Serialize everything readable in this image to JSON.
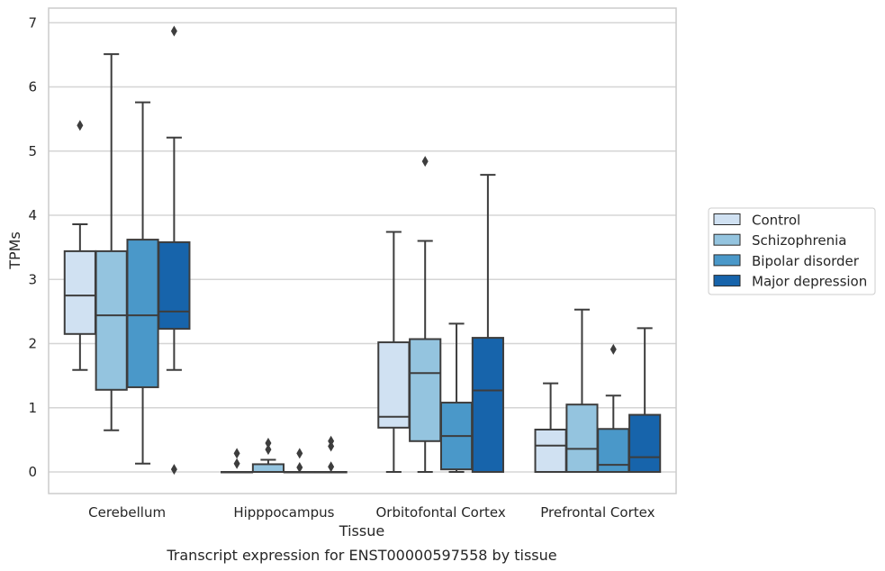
{
  "chart_data": {
    "type": "box",
    "title": "",
    "caption": "Transcript expression for ENST00000597558 by tissue",
    "xlabel": "Tissue",
    "ylabel": "TPMs",
    "ylim": [
      -0.33,
      7.2
    ],
    "yticks": [
      0,
      1,
      2,
      3,
      4,
      5,
      6,
      7
    ],
    "grid": "horizontal",
    "legend_position": "right",
    "categories": [
      "Cerebellum",
      "Hipppocampus",
      "Orbitofontal Cortex",
      "Prefrontal Cortex"
    ],
    "series": [
      {
        "name": "Control",
        "color": "#d0e1f2",
        "boxes": [
          {
            "whislo": 1.59,
            "q1": 2.15,
            "med": 2.75,
            "q3": 3.44,
            "whishi": 3.86,
            "fliers": [
              5.4
            ]
          },
          {
            "whislo": 0,
            "q1": 0,
            "med": 0,
            "q3": 0,
            "whishi": 0,
            "fliers": [
              0.13,
              0.29
            ]
          },
          {
            "whislo": 0,
            "q1": 0.69,
            "med": 0.86,
            "q3": 2.02,
            "whishi": 3.74,
            "fliers": []
          },
          {
            "whislo": 0,
            "q1": 0,
            "med": 0.41,
            "q3": 0.66,
            "whishi": 1.38,
            "fliers": []
          }
        ]
      },
      {
        "name": "Schizophrenia",
        "color": "#94c4df",
        "boxes": [
          {
            "whislo": 0.65,
            "q1": 1.28,
            "med": 2.44,
            "q3": 3.44,
            "whishi": 6.51,
            "fliers": []
          },
          {
            "whislo": 0,
            "q1": 0,
            "med": 0,
            "q3": 0.12,
            "whishi": 0.19,
            "fliers": [
              0.35,
              0.45
            ]
          },
          {
            "whislo": 0,
            "q1": 0.48,
            "med": 1.54,
            "q3": 2.07,
            "whishi": 3.6,
            "fliers": [
              4.84
            ]
          },
          {
            "whislo": 0,
            "q1": 0,
            "med": 0.36,
            "q3": 1.05,
            "whishi": 2.53,
            "fliers": []
          }
        ]
      },
      {
        "name": "Bipolar disorder",
        "color": "#4a98c9",
        "boxes": [
          {
            "whislo": 0.13,
            "q1": 1.32,
            "med": 2.44,
            "q3": 3.62,
            "whishi": 5.76,
            "fliers": []
          },
          {
            "whislo": 0,
            "q1": 0,
            "med": 0,
            "q3": 0,
            "whishi": 0,
            "fliers": [
              0.07,
              0.29
            ]
          },
          {
            "whislo": 0,
            "q1": 0.04,
            "med": 0.56,
            "q3": 1.08,
            "whishi": 2.31,
            "fliers": []
          },
          {
            "whislo": 0,
            "q1": 0,
            "med": 0.11,
            "q3": 0.67,
            "whishi": 1.19,
            "fliers": [
              1.91
            ]
          }
        ]
      },
      {
        "name": "Major depression",
        "color": "#1764ab",
        "boxes": [
          {
            "whislo": 1.59,
            "q1": 2.23,
            "med": 2.5,
            "q3": 3.58,
            "whishi": 5.21,
            "fliers": [
              0.04,
              6.87
            ]
          },
          {
            "whislo": 0,
            "q1": 0,
            "med": 0,
            "q3": 0,
            "whishi": 0,
            "fliers": [
              0.08,
              0.4,
              0.48
            ]
          },
          {
            "whislo": 0,
            "q1": 0,
            "med": 1.27,
            "q3": 2.09,
            "whishi": 4.63,
            "fliers": []
          },
          {
            "whislo": 0,
            "q1": 0,
            "med": 0.23,
            "q3": 0.89,
            "whishi": 2.24,
            "fliers": []
          }
        ]
      }
    ]
  }
}
